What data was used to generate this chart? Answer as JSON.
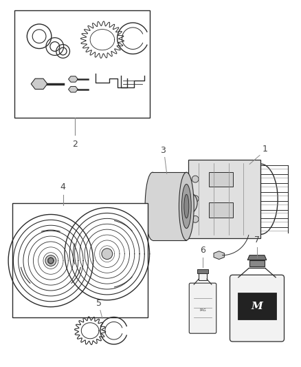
{
  "background_color": "#ffffff",
  "line_color": "#2a2a2a",
  "gray_color": "#888888",
  "light_gray": "#cccccc",
  "fig_w": 4.38,
  "fig_h": 5.33,
  "dpi": 100
}
